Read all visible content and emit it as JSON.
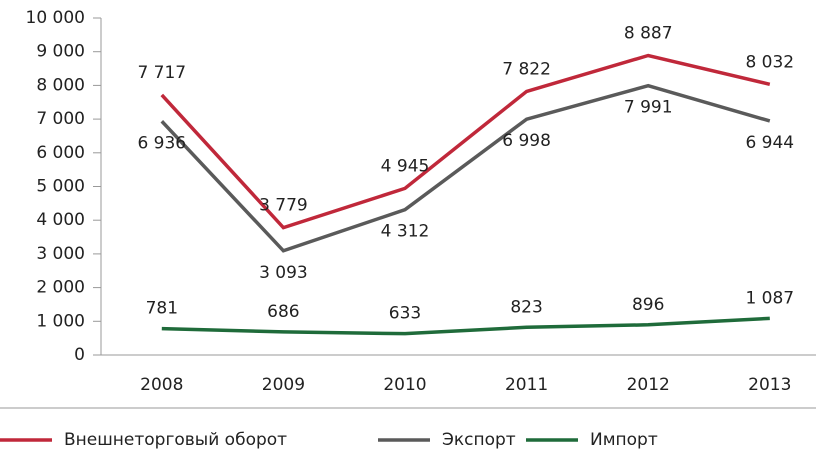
{
  "chart_data": {
    "type": "line",
    "categories": [
      "2008",
      "2009",
      "2010",
      "2011",
      "2012",
      "2013"
    ],
    "series": [
      {
        "name": "Внешнеторговый оборот",
        "color": "#c0283a",
        "values": [
          7717,
          3779,
          4945,
          7822,
          8887,
          8032
        ],
        "value_labels": [
          "7 717",
          "3 779",
          "4 945",
          "7 822",
          "8 887",
          "8 032"
        ]
      },
      {
        "name": "Экспорт",
        "color": "#5a5a5a",
        "values": [
          6936,
          3093,
          4312,
          6998,
          7991,
          6944
        ],
        "value_labels": [
          "6 936",
          "3 093",
          "4 312",
          "6 998",
          "7 991",
          "6 944"
        ]
      },
      {
        "name": "Импорт",
        "color": "#1f6b3a",
        "values": [
          781,
          686,
          633,
          823,
          896,
          1087
        ],
        "value_labels": [
          "781",
          "686",
          "633",
          "823",
          "896",
          "1 087"
        ]
      }
    ],
    "ylim": [
      0,
      10000
    ],
    "yticks": [
      0,
      {
        "value": 1000,
        "label": "1 000"
      },
      {
        "value": 2000,
        "label": "2 000"
      },
      {
        "value": 3000,
        "label": "3 000"
      },
      {
        "value": 4000,
        "label": "4 000"
      },
      {
        "value": 5000,
        "label": "5 000"
      },
      {
        "value": 6000,
        "label": "6 000"
      },
      {
        "value": 7000,
        "label": "7 000"
      },
      {
        "value": 8000,
        "label": "8 000"
      },
      {
        "value": 9000,
        "label": "9 000"
      },
      {
        "value": 10000,
        "label": "10 000"
      }
    ],
    "legend": "bottom"
  }
}
